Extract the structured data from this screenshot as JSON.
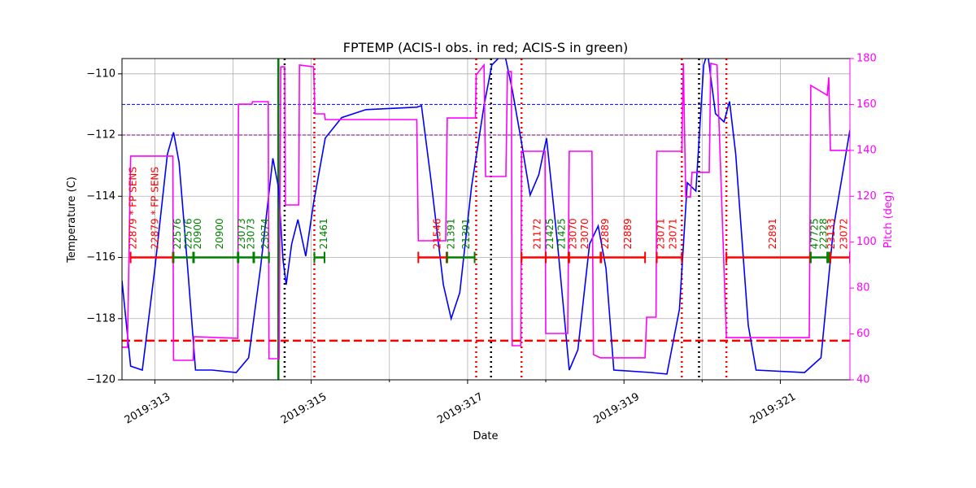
{
  "chart_data": {
    "type": "line",
    "title": "FPTEMP (ACIS-I obs. in red; ACIS-S in green)",
    "x_label": "Date",
    "y_label": "Temperature (C)",
    "y2_label": "Pitch (deg)",
    "xlim": [
      312.58,
      321.89
    ],
    "xticks": [
      {
        "value": 313,
        "label": "2019:313"
      },
      {
        "value": 315,
        "label": "2019:315"
      },
      {
        "value": 317,
        "label": "2019:317"
      },
      {
        "value": 319,
        "label": "2019:319"
      },
      {
        "value": 321,
        "label": "2019:321"
      }
    ],
    "xminorticks": [
      314,
      316,
      318,
      320
    ],
    "ylim": [
      -120,
      -109.5
    ],
    "yticks": [
      {
        "value": -120,
        "label": "−120"
      },
      {
        "value": -118,
        "label": "−118"
      },
      {
        "value": -116,
        "label": "−116"
      },
      {
        "value": -114,
        "label": "−114"
      },
      {
        "value": -112,
        "label": "−112"
      },
      {
        "value": -110,
        "label": "−110"
      }
    ],
    "y2lim": [
      40,
      180
    ],
    "y2ticks": [
      40,
      60,
      80,
      100,
      120,
      140,
      160,
      180
    ],
    "grid": true,
    "series": [
      {
        "name": "FPTEMP",
        "color": "#0000ff",
        "x": [
          312.58,
          312.69,
          312.84,
          313.0,
          313.16,
          313.24,
          313.31,
          313.42,
          313.52,
          313.73,
          314.04,
          314.2,
          314.35,
          314.51,
          314.58,
          314.64,
          314.68,
          314.75,
          314.83,
          314.93,
          315.03,
          315.18,
          315.39,
          315.7,
          316.35,
          316.41,
          316.53,
          316.69,
          316.79,
          316.9,
          317.05,
          317.21,
          317.31,
          317.47,
          317.57,
          317.68,
          317.8,
          317.91,
          318.01,
          318.15,
          318.3,
          318.41,
          318.56,
          318.67,
          318.77,
          318.87,
          319.34,
          319.55,
          319.71,
          319.81,
          319.92,
          320.02,
          320.07,
          320.17,
          320.28,
          320.35,
          320.43,
          320.59,
          320.69,
          321.31,
          321.52,
          321.68,
          321.89
        ],
        "values": [
          -116.76,
          -119.55,
          -119.68,
          -116.36,
          -112.63,
          -111.91,
          -112.9,
          -116.36,
          -119.68,
          -119.68,
          -119.76,
          -119.28,
          -116.36,
          -112.76,
          -113.7,
          -116.09,
          -116.89,
          -115.56,
          -114.76,
          -115.96,
          -114.23,
          -112.1,
          -111.43,
          -111.17,
          -111.09,
          -111.04,
          -113.43,
          -116.89,
          -118.0,
          -117.15,
          -113.7,
          -111.04,
          -109.71,
          -109.3,
          -110.5,
          -112.1,
          -113.96,
          -113.3,
          -112.1,
          -115.56,
          -119.68,
          -119.02,
          -115.56,
          -114.97,
          -116.36,
          -119.68,
          -119.76,
          -119.81,
          -117.69,
          -113.56,
          -113.83,
          -109.71,
          -109.3,
          -111.3,
          -111.57,
          -110.9,
          -112.63,
          -118.22,
          -119.68,
          -119.76,
          -119.28,
          -115.03,
          -111.83
        ]
      },
      {
        "name": "Pitch",
        "color": "#ff00ff",
        "axis": "y2",
        "x": [
          312.58,
          312.65,
          312.69,
          313.23,
          313.24,
          313.49,
          313.5,
          314.06,
          314.07,
          314.24,
          314.25,
          314.45,
          314.46,
          314.59,
          314.61,
          314.66,
          314.67,
          314.84,
          314.85,
          315.03,
          315.05,
          315.17,
          315.18,
          316.35,
          316.37,
          316.72,
          316.74,
          317.1,
          317.11,
          317.21,
          317.23,
          317.49,
          317.51,
          317.56,
          317.57,
          317.68,
          317.69,
          317.99,
          318.0,
          318.28,
          318.3,
          318.59,
          318.61,
          318.7,
          319.27,
          319.29,
          319.41,
          319.42,
          319.74,
          319.76,
          319.79,
          319.85,
          319.87,
          320.09,
          320.11,
          320.19,
          320.31,
          321.37,
          321.39,
          321.6,
          321.62,
          321.64,
          321.89
        ],
        "values": [
          54.2,
          54.2,
          137.5,
          137.5,
          48.5,
          48.5,
          58.8,
          58.1,
          160.1,
          160.1,
          161.2,
          161.2,
          49.2,
          49.2,
          176.4,
          176.4,
          116.2,
          116.2,
          177.2,
          176.4,
          155.9,
          155.9,
          153.4,
          153.4,
          100.6,
          100.6,
          154.1,
          154.1,
          172.9,
          177.2,
          128.6,
          128.6,
          174.3,
          174.3,
          54.9,
          54.9,
          139.6,
          139.6,
          60.2,
          60.2,
          139.6,
          139.6,
          51.0,
          49.6,
          49.6,
          67.3,
          67.3,
          139.6,
          139.6,
          177.9,
          119.7,
          119.7,
          130.4,
          130.4,
          177.9,
          177.2,
          58.4,
          58.4,
          168.3,
          164.0,
          171.8,
          140.0,
          140.0
        ]
      }
    ],
    "hlines": [
      {
        "y": -111,
        "color": "#0000ff",
        "style": "dashed"
      },
      {
        "y": -112,
        "color": "#800080",
        "style": "dashed"
      },
      {
        "y": -118.72,
        "color": "#ff0000",
        "style": "bold-dashed"
      }
    ],
    "vlines": [
      {
        "x": 315.04,
        "color": "#ff0000",
        "style": "dotted"
      },
      {
        "x": 317.11,
        "color": "#ff0000",
        "style": "dotted"
      },
      {
        "x": 317.69,
        "color": "#ff0000",
        "style": "dotted"
      },
      {
        "x": 319.74,
        "color": "#ff0000",
        "style": "dotted"
      },
      {
        "x": 320.31,
        "color": "#ff0000",
        "style": "dotted"
      },
      {
        "x": 314.66,
        "color": "#000000",
        "style": "dotted"
      },
      {
        "x": 317.3,
        "color": "#000000",
        "style": "dotted"
      },
      {
        "x": 319.96,
        "color": "#000000",
        "style": "dotted"
      },
      {
        "x": 314.58,
        "color": "#008000",
        "style": "solid"
      }
    ],
    "obs_level": -116,
    "obs_segments": [
      {
        "start": 312.69,
        "end": 313.23,
        "color": "#ff0000"
      },
      {
        "start": 313.24,
        "end": 313.49,
        "color": "#008000"
      },
      {
        "start": 313.5,
        "end": 314.06,
        "color": "#008000"
      },
      {
        "start": 314.07,
        "end": 314.26,
        "color": "#008000"
      },
      {
        "start": 314.27,
        "end": 314.46,
        "color": "#008000"
      },
      {
        "start": 315.04,
        "end": 315.17,
        "color": "#008000"
      },
      {
        "start": 316.37,
        "end": 316.73,
        "color": "#ff0000"
      },
      {
        "start": 316.74,
        "end": 317.09,
        "color": "#008000"
      },
      {
        "start": 317.69,
        "end": 318.0,
        "color": "#ff0000"
      },
      {
        "start": 318.0,
        "end": 318.29,
        "color": "#ff0000"
      },
      {
        "start": 318.3,
        "end": 318.7,
        "color": "#ff0000"
      },
      {
        "start": 318.71,
        "end": 319.27,
        "color": "#ff0000"
      },
      {
        "start": 319.42,
        "end": 319.74,
        "color": "#ff0000"
      },
      {
        "start": 320.31,
        "end": 321.38,
        "color": "#ff0000"
      },
      {
        "start": 321.39,
        "end": 321.6,
        "color": "#008000"
      },
      {
        "start": 321.62,
        "end": 321.64,
        "color": "#008000"
      },
      {
        "start": 321.64,
        "end": 321.89,
        "color": "#ff0000"
      }
    ],
    "obs_labels": [
      {
        "text": "22879 * FP SENS",
        "x": 312.72,
        "color": "#ff0000"
      },
      {
        "text": "22879 * FP SENS",
        "x": 313.0,
        "color": "#ff0000"
      },
      {
        "text": "22576",
        "x": 313.29,
        "color": "#008000"
      },
      {
        "text": "22576",
        "x": 313.43,
        "color": "#008000"
      },
      {
        "text": "20900",
        "x": 313.55,
        "color": "#008000"
      },
      {
        "text": "20900",
        "x": 313.83,
        "color": "#008000"
      },
      {
        "text": "23073",
        "x": 314.11,
        "color": "#008000"
      },
      {
        "text": "23073",
        "x": 314.23,
        "color": "#008000"
      },
      {
        "text": "23074",
        "x": 314.41,
        "color": "#008000"
      },
      {
        "text": "21461",
        "x": 315.16,
        "color": "#008000"
      },
      {
        "text": "21546",
        "x": 316.61,
        "color": "#ff0000"
      },
      {
        "text": "21391",
        "x": 316.79,
        "color": "#008000"
      },
      {
        "text": "21391",
        "x": 316.98,
        "color": "#008000"
      },
      {
        "text": "21172",
        "x": 317.89,
        "color": "#ff0000"
      },
      {
        "text": "21425",
        "x": 318.05,
        "color": "#008000"
      },
      {
        "text": "21425",
        "x": 318.2,
        "color": "#008000"
      },
      {
        "text": "23070",
        "x": 318.35,
        "color": "#ff0000"
      },
      {
        "text": "23070",
        "x": 318.5,
        "color": "#ff0000"
      },
      {
        "text": "22889",
        "x": 318.76,
        "color": "#ff0000"
      },
      {
        "text": "22889",
        "x": 319.05,
        "color": "#ff0000"
      },
      {
        "text": "23071",
        "x": 319.47,
        "color": "#ff0000"
      },
      {
        "text": "23071",
        "x": 319.63,
        "color": "#ff0000"
      },
      {
        "text": "22891",
        "x": 320.9,
        "color": "#ff0000"
      },
      {
        "text": "47725",
        "x": 321.44,
        "color": "#008000"
      },
      {
        "text": "22328",
        "x": 321.55,
        "color": "#008000"
      },
      {
        "text": "23133",
        "x": 321.65,
        "color": "#ff0000"
      },
      {
        "text": "23072",
        "x": 321.81,
        "color": "#ff0000"
      }
    ]
  }
}
